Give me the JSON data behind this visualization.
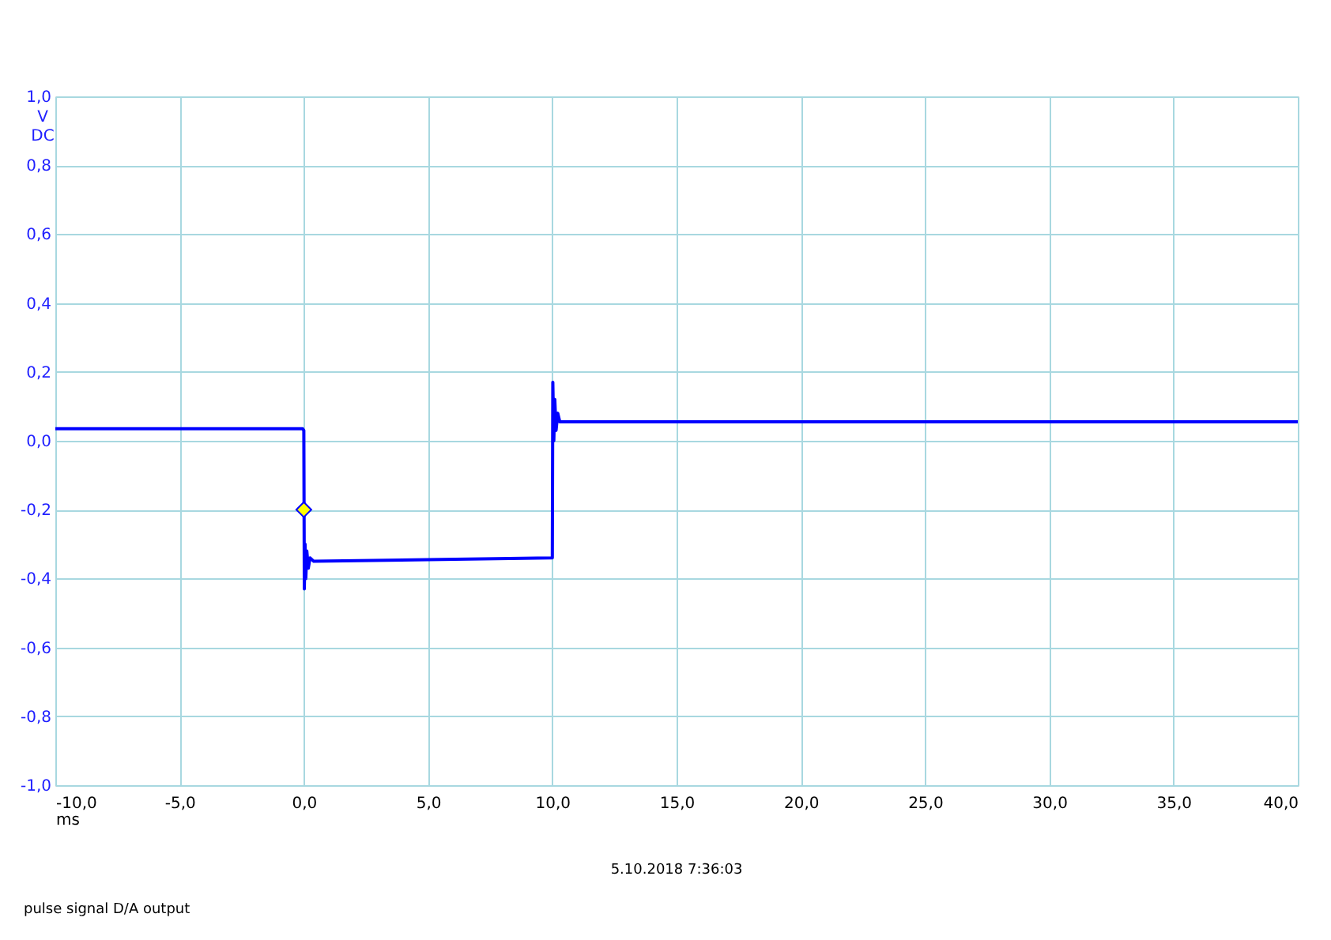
{
  "chart_data": {
    "type": "line",
    "xlabel": "ms",
    "ylabel": "V DC",
    "grid": true,
    "xlim": [
      -10,
      40
    ],
    "ylim": [
      -1,
      1
    ],
    "xticks": [
      {
        "value": -10,
        "label": "-10,0"
      },
      {
        "value": -5,
        "label": "-5,0"
      },
      {
        "value": 0,
        "label": "0,0"
      },
      {
        "value": 5,
        "label": "5,0"
      },
      {
        "value": 10,
        "label": "10,0"
      },
      {
        "value": 15,
        "label": "15,0"
      },
      {
        "value": 20,
        "label": "20,0"
      },
      {
        "value": 25,
        "label": "25,0"
      },
      {
        "value": 30,
        "label": "30,0"
      },
      {
        "value": 35,
        "label": "35,0"
      },
      {
        "value": 40,
        "label": "40,0"
      }
    ],
    "yticks": [
      {
        "value": -1,
        "label": "-1,0"
      },
      {
        "value": -0.8,
        "label": "-0,8"
      },
      {
        "value": -0.6,
        "label": "-0,6"
      },
      {
        "value": -0.4,
        "label": "-0,4"
      },
      {
        "value": -0.2,
        "label": "-0,2"
      },
      {
        "value": 0,
        "label": "0,0"
      },
      {
        "value": 0.2,
        "label": "0,2"
      },
      {
        "value": 0.4,
        "label": "0,4"
      },
      {
        "value": 0.6,
        "label": "0,6"
      },
      {
        "value": 0.8,
        "label": "0,8"
      },
      {
        "value": 1,
        "label": "1,0"
      }
    ],
    "series": [
      {
        "color": "#0000ff",
        "x": [
          -10,
          -2,
          -0.05,
          0.0,
          0.02,
          0.05,
          0.08,
          0.12,
          0.18,
          0.25,
          0.4,
          5,
          9.95,
          10.0,
          10.02,
          10.06,
          10.1,
          10.15,
          10.22,
          10.3,
          40
        ],
        "values": [
          0.035,
          0.035,
          0.035,
          0.03,
          -0.43,
          -0.3,
          -0.4,
          -0.32,
          -0.37,
          -0.34,
          -0.35,
          -0.345,
          -0.34,
          -0.34,
          0.17,
          0.0,
          0.12,
          0.03,
          0.08,
          0.055,
          0.055
        ]
      },
      {
        "type": "scatter",
        "marker": "diamond",
        "color": "#ffff00",
        "x": [
          0
        ],
        "values": [
          -0.2
        ]
      }
    ],
    "annotations": [
      "5.10.2018 7:36:03",
      "pulse signal D/A output"
    ]
  }
}
